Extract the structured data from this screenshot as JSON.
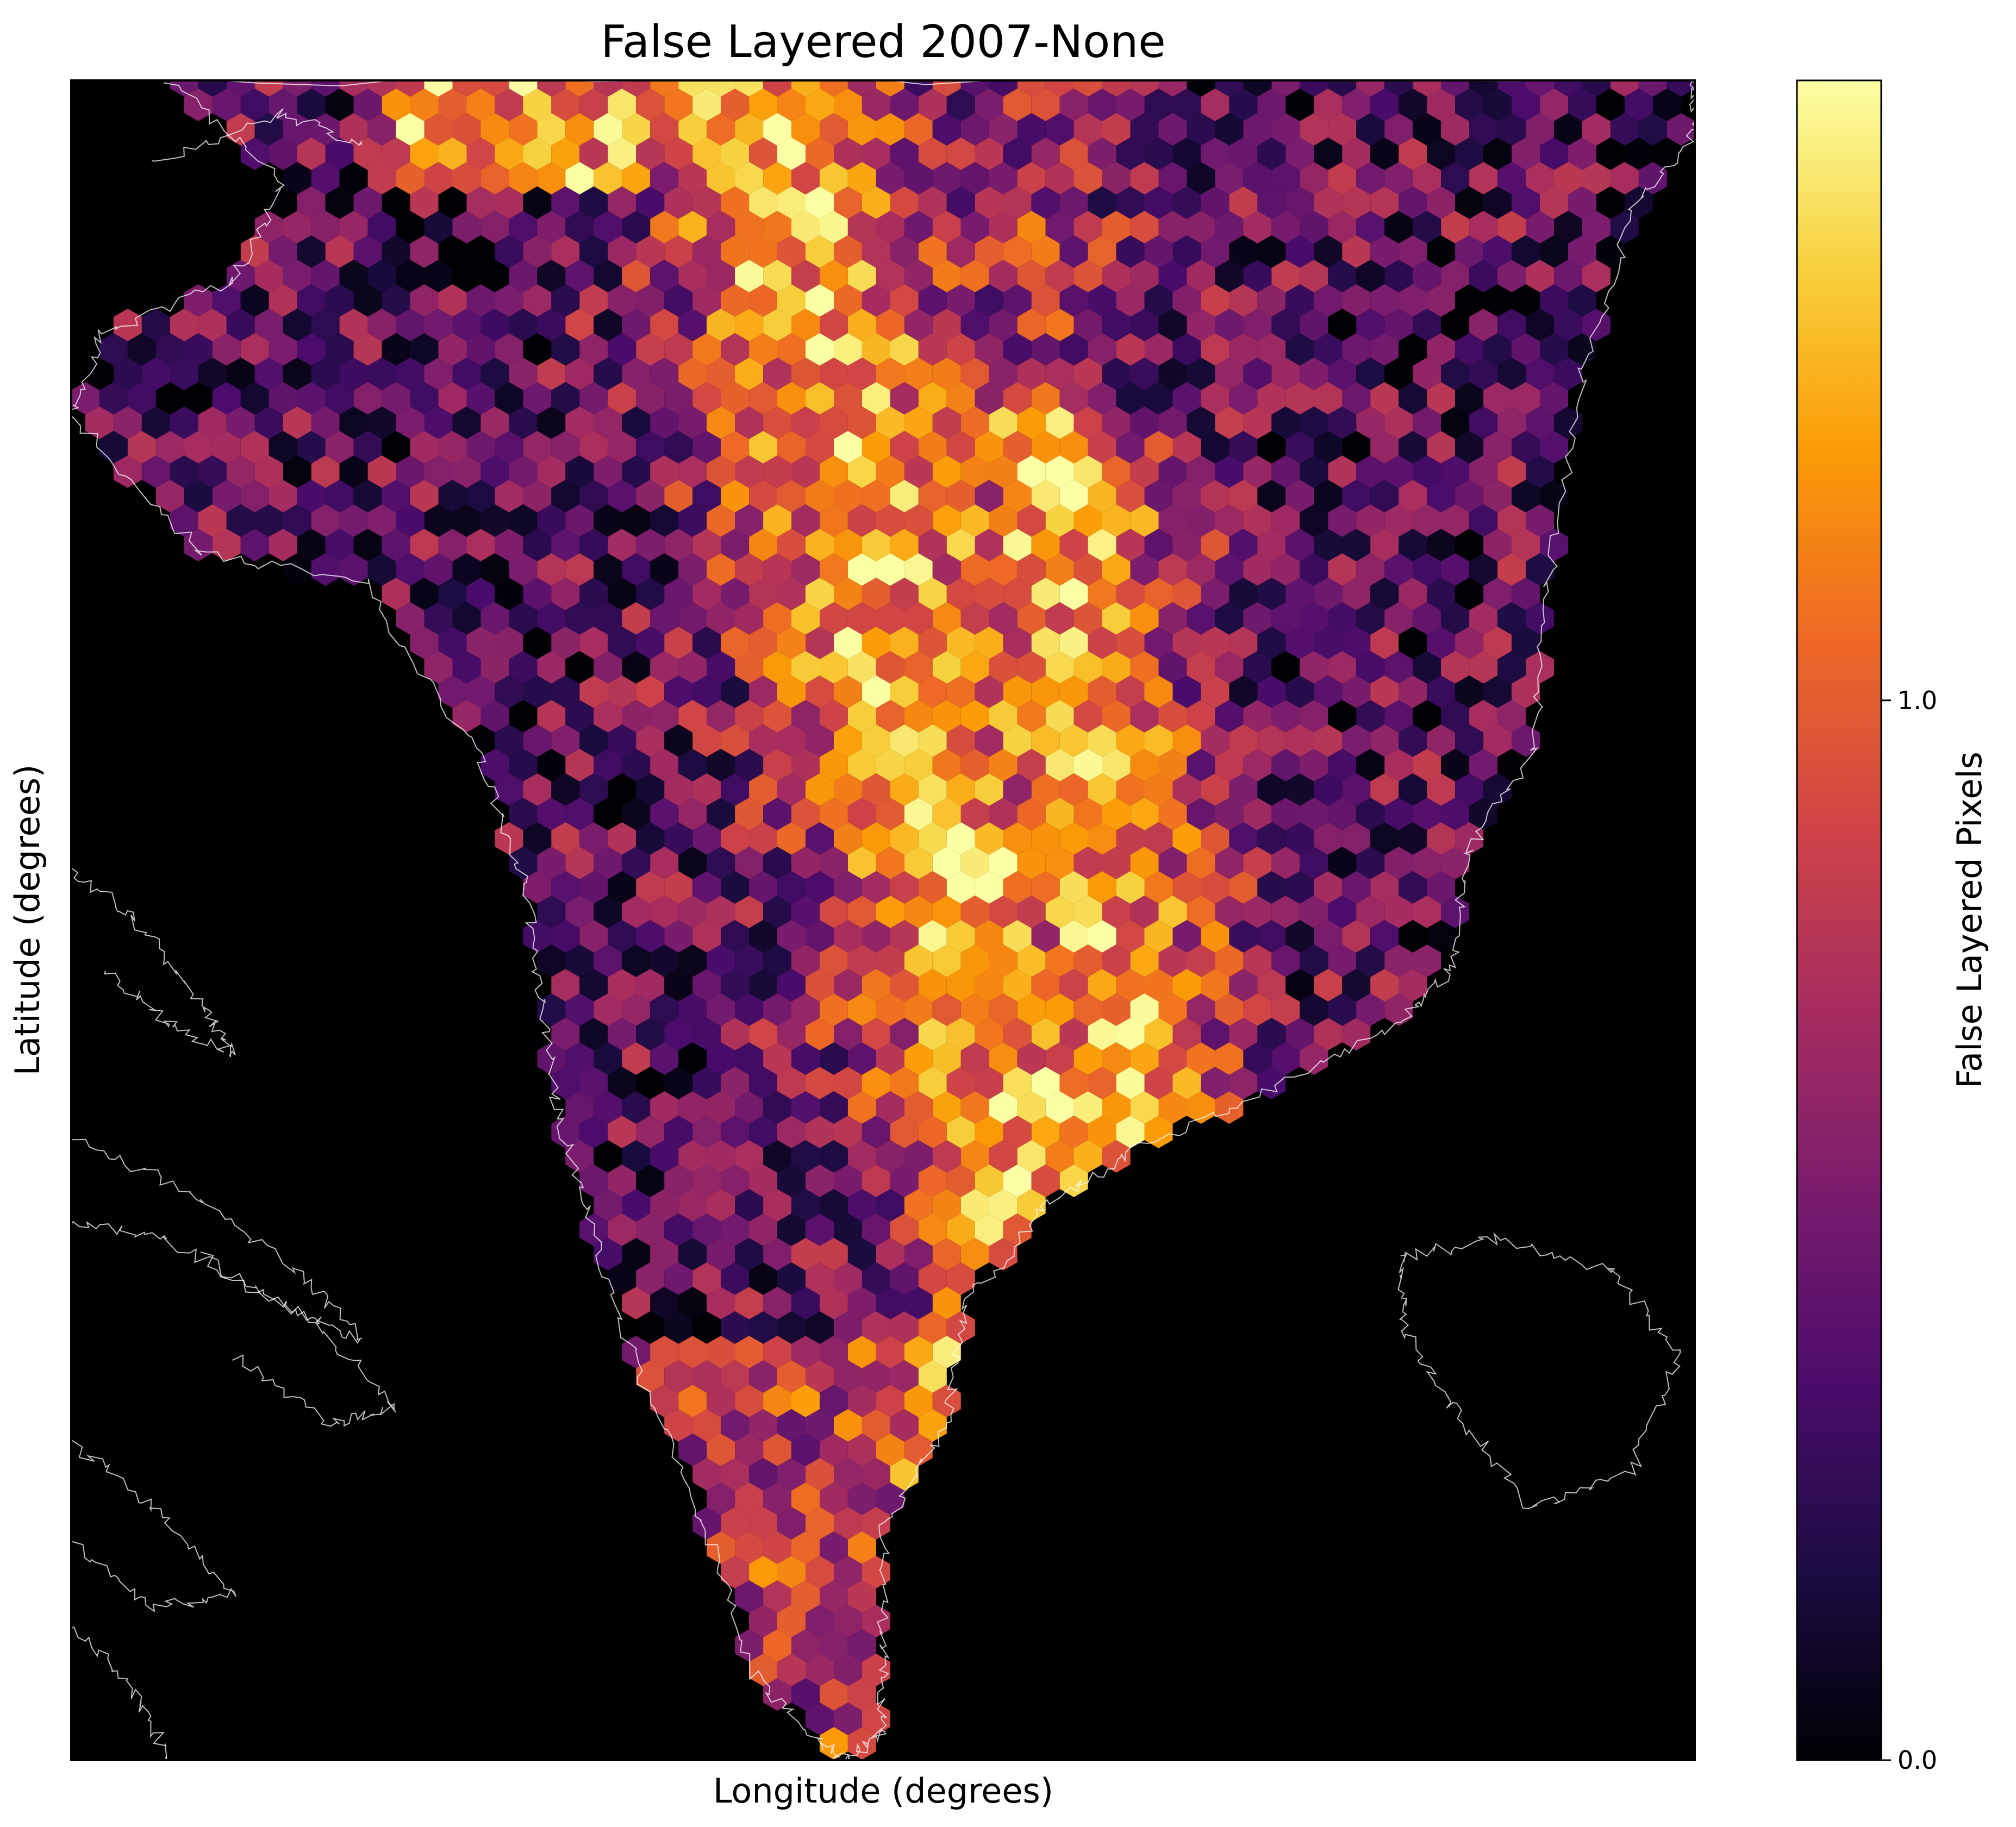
{
  "chart_data": {
    "type": "heatmap",
    "subtype": "hexbin map",
    "title": "False Layered 2007-None",
    "xlabel": "Longitude (degrees)",
    "ylabel": "Latitude (degrees)",
    "colorbar": {
      "label": "False Layered Pixels",
      "colormap": "inferno",
      "ticks": [
        0.0,
        1.0
      ],
      "tick_labels": [
        "0.0",
        "1.0"
      ],
      "range": [
        0.0,
        2.0
      ],
      "scale": "symlog"
    },
    "background_color": "#000000",
    "coastline_color": "#ffffff",
    "grid": false,
    "colormap_stops": [
      "#000004",
      "#1b0c41",
      "#4a0c6b",
      "#781c6d",
      "#a52c60",
      "#cf4446",
      "#ed6925",
      "#fb9b06",
      "#f7d13d",
      "#fcffa4"
    ]
  }
}
